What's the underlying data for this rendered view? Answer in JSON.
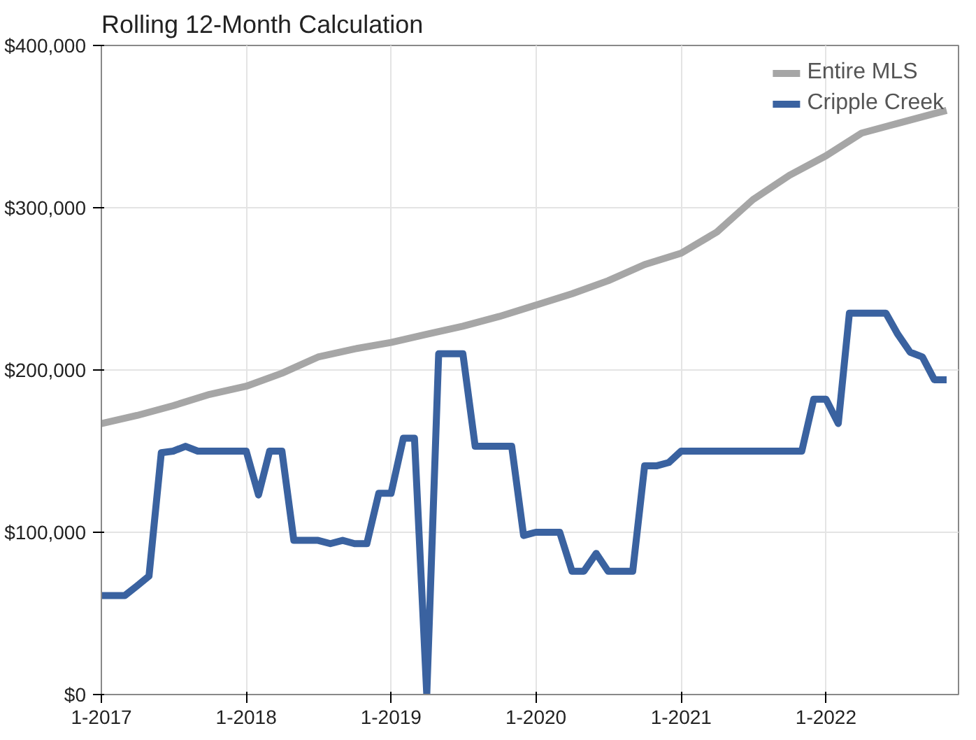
{
  "chart_data": {
    "type": "line",
    "title": "Rolling 12-Month Calculation",
    "x": [
      "2017-01",
      "2017-02",
      "2017-03",
      "2017-04",
      "2017-05",
      "2017-06",
      "2017-07",
      "2017-08",
      "2017-09",
      "2017-10",
      "2017-11",
      "2017-12",
      "2018-01",
      "2018-02",
      "2018-03",
      "2018-04",
      "2018-05",
      "2018-06",
      "2018-07",
      "2018-08",
      "2018-09",
      "2018-10",
      "2018-11",
      "2018-12",
      "2019-01",
      "2019-02",
      "2019-03",
      "2019-04",
      "2019-05",
      "2019-06",
      "2019-07",
      "2019-08",
      "2019-09",
      "2019-10",
      "2019-11",
      "2019-12",
      "2020-01",
      "2020-02",
      "2020-03",
      "2020-04",
      "2020-05",
      "2020-06",
      "2020-07",
      "2020-08",
      "2020-09",
      "2020-10",
      "2020-11",
      "2020-12",
      "2021-01",
      "2021-02",
      "2021-03",
      "2021-04",
      "2021-05",
      "2021-06",
      "2021-07",
      "2021-08",
      "2021-09",
      "2021-10",
      "2021-11",
      "2021-12",
      "2022-01",
      "2022-02",
      "2022-03",
      "2022-04",
      "2022-05",
      "2022-06",
      "2022-07",
      "2022-08",
      "2022-09",
      "2022-10",
      "2022-11"
    ],
    "series": [
      {
        "name": "Entire MLS",
        "color": "#a6a6a6",
        "x": [
          "2017-01",
          "2017-04",
          "2017-07",
          "2017-10",
          "2018-01",
          "2018-04",
          "2018-07",
          "2018-10",
          "2019-01",
          "2019-04",
          "2019-07",
          "2019-10",
          "2020-01",
          "2020-04",
          "2020-07",
          "2020-10",
          "2021-01",
          "2021-04",
          "2021-07",
          "2021-10",
          "2022-01",
          "2022-04",
          "2022-07",
          "2022-10",
          "2022-11"
        ],
        "values": [
          167000,
          172000,
          178000,
          185000,
          190000,
          198000,
          208000,
          213000,
          217000,
          222000,
          227000,
          233000,
          240000,
          247000,
          255000,
          265000,
          272000,
          285000,
          305000,
          320000,
          332000,
          346000,
          352000,
          358000,
          360000
        ]
      },
      {
        "name": "Cripple Creek",
        "color": "#3a62a0",
        "values": [
          61000,
          61000,
          61000,
          67000,
          73000,
          149000,
          150000,
          153000,
          150000,
          150000,
          150000,
          150000,
          150000,
          123000,
          150000,
          150000,
          95000,
          95000,
          95000,
          93000,
          95000,
          93000,
          93000,
          124000,
          124000,
          158000,
          158000,
          0,
          210000,
          210000,
          210000,
          153000,
          153000,
          153000,
          153000,
          98000,
          100000,
          100000,
          100000,
          76000,
          76000,
          87000,
          76000,
          76000,
          76000,
          141000,
          141000,
          143000,
          150000,
          150000,
          150000,
          150000,
          150000,
          150000,
          150000,
          150000,
          150000,
          150000,
          150000,
          182000,
          182000,
          167000,
          235000,
          235000,
          235000,
          235000,
          222000,
          211000,
          208000,
          194000,
          194000
        ]
      }
    ],
    "xlim": [
      "2017-01",
      "2022-12"
    ],
    "xticks": [
      {
        "value": "2017-01",
        "label": "1-2017"
      },
      {
        "value": "2018-01",
        "label": "1-2018"
      },
      {
        "value": "2019-01",
        "label": "1-2019"
      },
      {
        "value": "2020-01",
        "label": "1-2020"
      },
      {
        "value": "2021-01",
        "label": "1-2021"
      },
      {
        "value": "2022-01",
        "label": "1-2022"
      }
    ],
    "ylim": [
      0,
      400000
    ],
    "yticks": [
      {
        "value": 0,
        "label": "$0"
      },
      {
        "value": 100000,
        "label": "$100,000"
      },
      {
        "value": 200000,
        "label": "$200,000"
      },
      {
        "value": 300000,
        "label": "$300,000"
      },
      {
        "value": 400000,
        "label": "$400,000"
      }
    ],
    "grid": true,
    "legend": "top right",
    "marker": "none",
    "line_style": "solid"
  }
}
